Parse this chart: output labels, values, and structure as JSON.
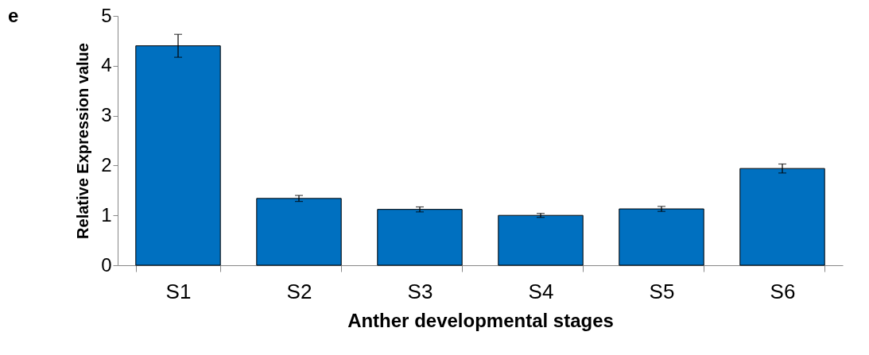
{
  "chart_data": {
    "type": "bar",
    "xlabel": "Anther developmental stages",
    "ylabel": "Relative Expression value",
    "categories": [
      "S1",
      "S2",
      "S3",
      "S4",
      "S5",
      "S6"
    ],
    "values": [
      4.4,
      1.34,
      1.12,
      1.0,
      1.13,
      1.94
    ],
    "errors": [
      0.23,
      0.06,
      0.05,
      0.04,
      0.05,
      0.09
    ],
    "color": "#0070c0",
    "ylim": [
      0,
      5
    ],
    "yticks": [
      0,
      1,
      2,
      3,
      4,
      5
    ],
    "grid": false,
    "annotations": [
      "e"
    ]
  }
}
